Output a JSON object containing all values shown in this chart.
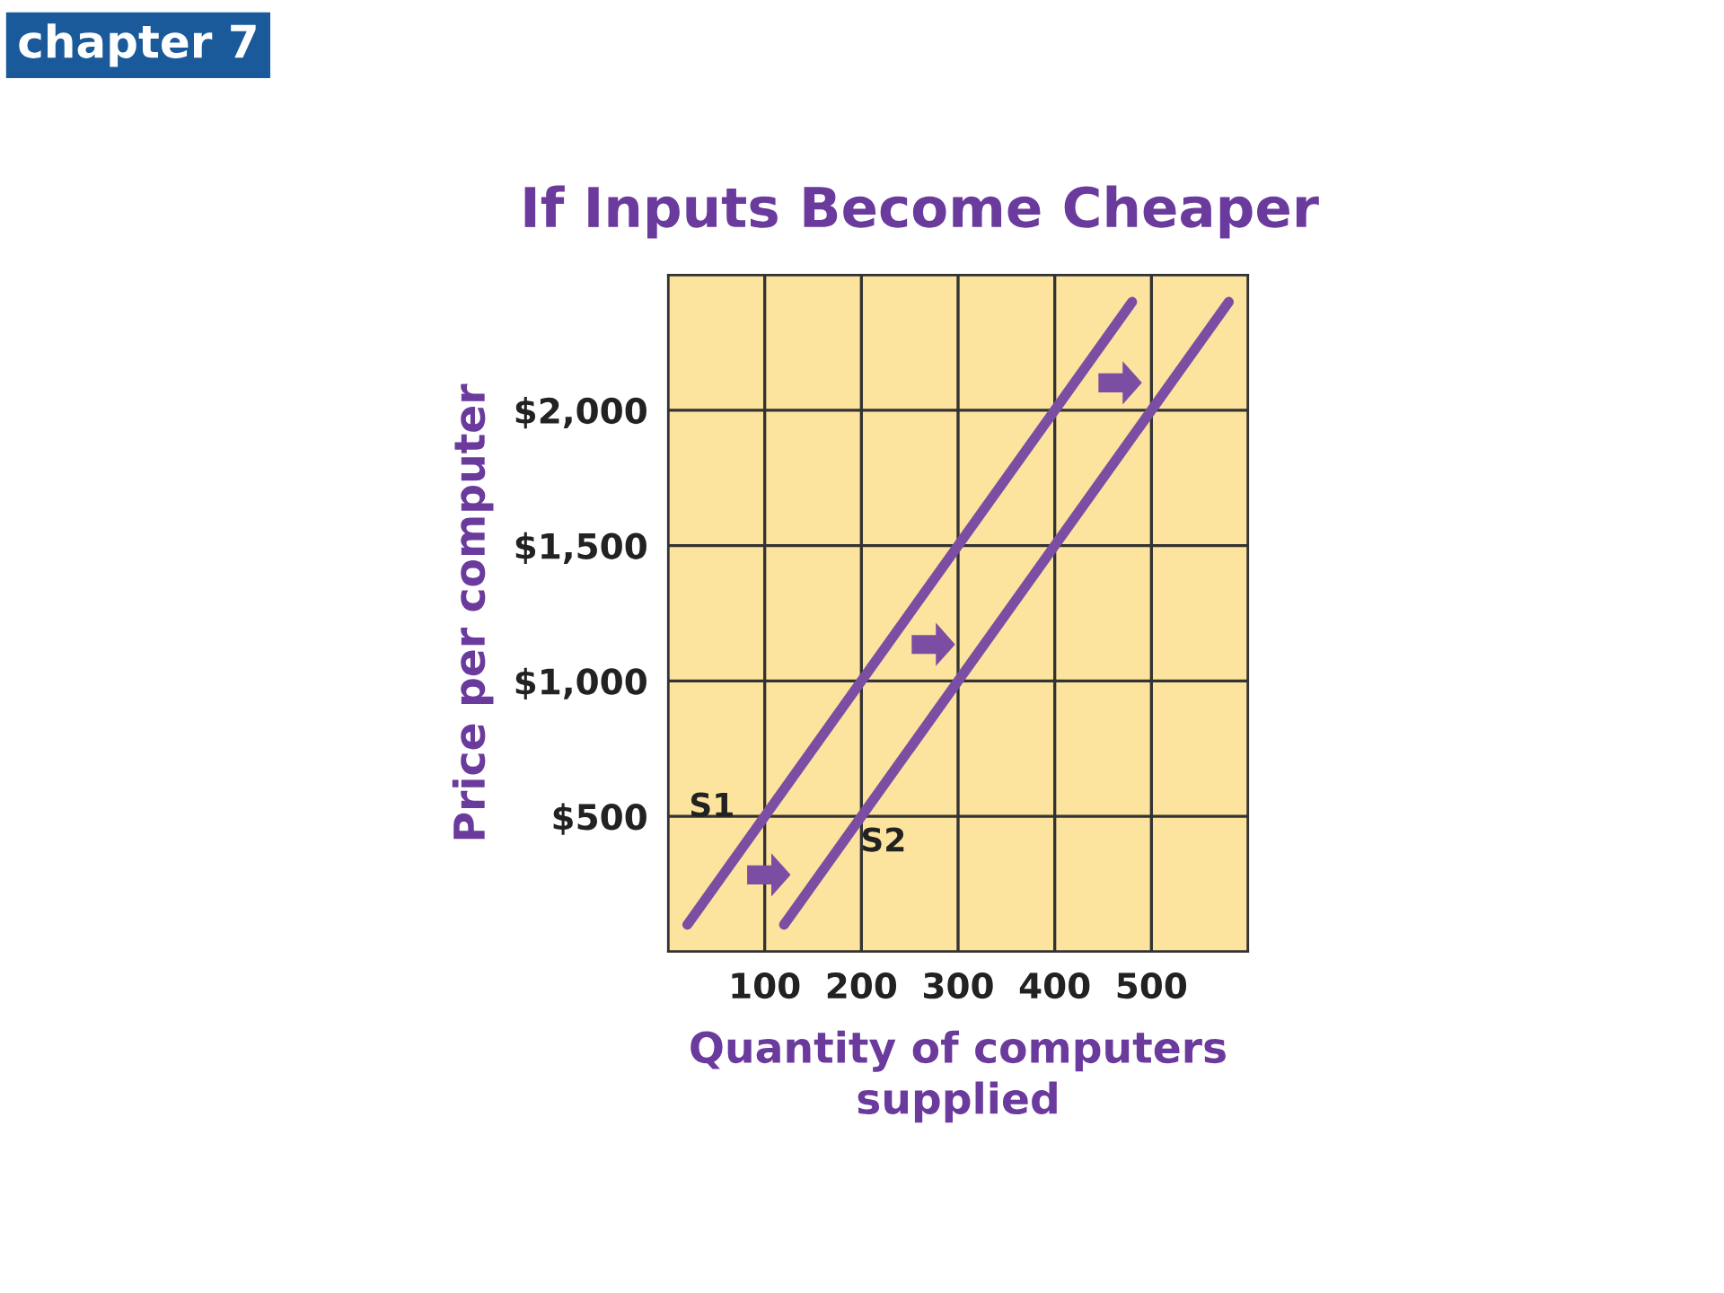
{
  "chart_data": {
    "type": "line",
    "title": "If Inputs Become Cheaper",
    "xlabel": "Quantity of computers\nsupplied",
    "ylabel": "Price per computer",
    "annotations": [
      "chapter 7"
    ],
    "series": [
      {
        "name": "S1",
        "color": "#7b4ea3",
        "x": [
          20,
          480
        ],
        "values": [
          100,
          2400
        ]
      },
      {
        "name": "S2",
        "color": "#7b4ea3",
        "x": [
          120,
          580
        ],
        "values": [
          100,
          2400
        ]
      }
    ],
    "xlim": [
      0,
      600
    ],
    "xticks": [
      {
        "value": 0,
        "label": null
      },
      100,
      200,
      300,
      400,
      500,
      {
        "value": 600,
        "label": null
      }
    ],
    "ylim": [
      0,
      2500
    ],
    "yticks": [
      {
        "value": 0,
        "label": null
      },
      {
        "value": 500,
        "label": "$500"
      },
      {
        "value": 1000,
        "label": "$1,000"
      },
      {
        "value": 1500,
        "label": "$1,500"
      },
      {
        "value": 2000,
        "label": "$2,000"
      },
      {
        "value": 2500,
        "label": null
      }
    ],
    "grid": true,
    "legend": false,
    "marker": "none",
    "line_style": "solid"
  }
}
